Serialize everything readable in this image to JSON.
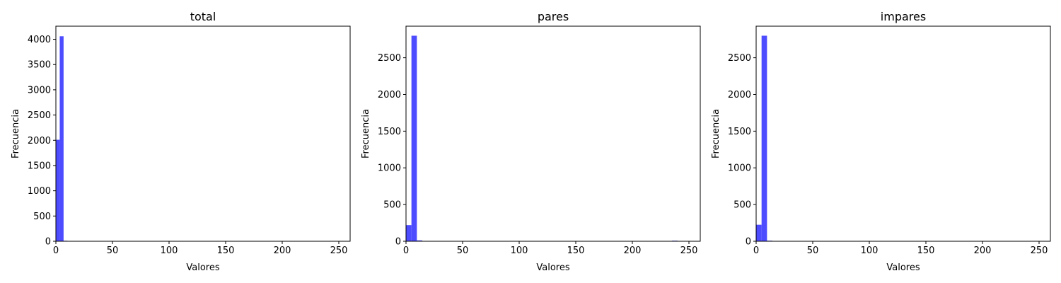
{
  "colors": {
    "bar": "#4d4dff",
    "axis": "#000000",
    "background": "#ffffff"
  },
  "chart_data": [
    {
      "type": "bar",
      "title": "total",
      "xlabel": "Valores",
      "ylabel": "Frecuencia",
      "xlim": [
        0,
        260
      ],
      "ylim": [
        0,
        4260
      ],
      "xticks": [
        0,
        50,
        100,
        150,
        200,
        250
      ],
      "yticks": [
        0,
        500,
        1000,
        1500,
        2000,
        2500,
        3000,
        3500,
        4000
      ],
      "bins": [
        {
          "x0": 0,
          "x1": 3.4,
          "value": 2010
        },
        {
          "x0": 3.4,
          "x1": 6.8,
          "value": 4060
        },
        {
          "x0": 6.8,
          "x1": 10.2,
          "value": 10
        }
      ]
    },
    {
      "type": "bar",
      "title": "pares",
      "xlabel": "Valores",
      "ylabel": "Frecuencia",
      "xlim": [
        0,
        260
      ],
      "ylim": [
        0,
        2930
      ],
      "xticks": [
        0,
        50,
        100,
        150,
        200,
        250
      ],
      "yticks": [
        0,
        500,
        1000,
        1500,
        2000,
        2500
      ],
      "bins": [
        {
          "x0": 0,
          "x1": 4.8,
          "value": 220
        },
        {
          "x0": 4.8,
          "x1": 9.6,
          "value": 2800
        },
        {
          "x0": 9.6,
          "x1": 14.4,
          "value": 12
        },
        {
          "x0": 235,
          "x1": 240,
          "value": 8
        }
      ]
    },
    {
      "type": "bar",
      "title": "impares",
      "xlabel": "Valores",
      "ylabel": "Frecuencia",
      "xlim": [
        0,
        260
      ],
      "ylim": [
        0,
        2930
      ],
      "xticks": [
        0,
        50,
        100,
        150,
        200,
        250
      ],
      "yticks": [
        0,
        500,
        1000,
        1500,
        2000,
        2500
      ],
      "bins": [
        {
          "x0": 0,
          "x1": 4.8,
          "value": 225
        },
        {
          "x0": 4.8,
          "x1": 9.6,
          "value": 2800
        },
        {
          "x0": 9.6,
          "x1": 14.4,
          "value": 8
        }
      ]
    }
  ]
}
